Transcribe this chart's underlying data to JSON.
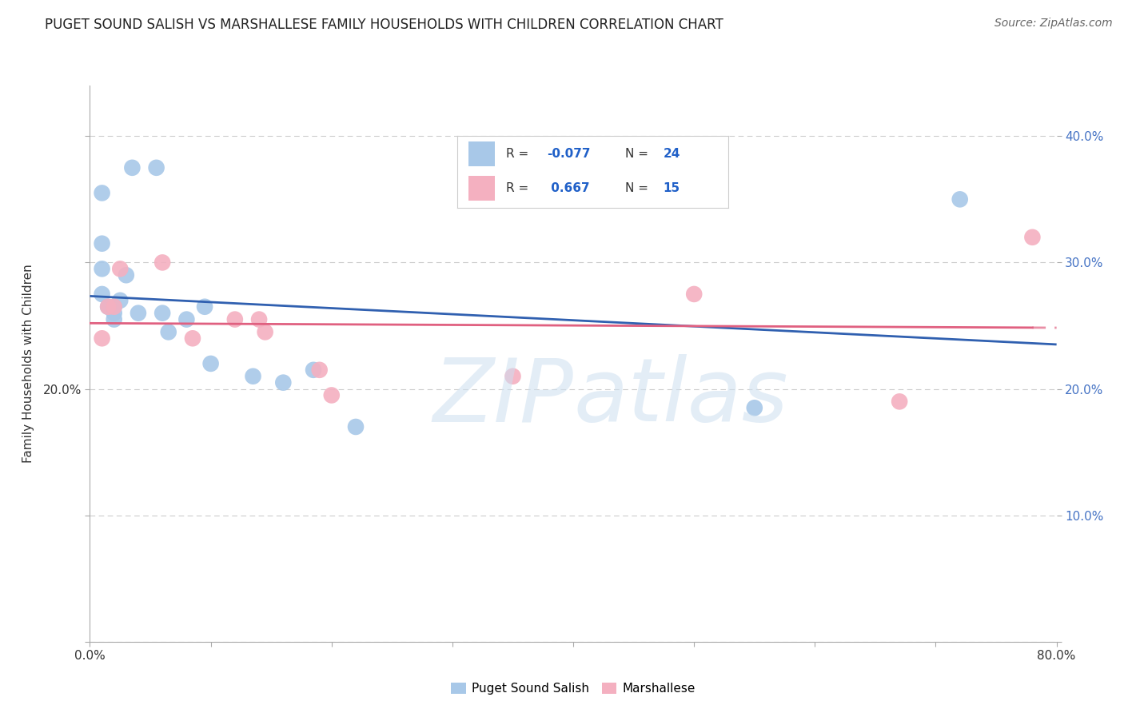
{
  "title": "PUGET SOUND SALISH VS MARSHALLESE FAMILY HOUSEHOLDS WITH CHILDREN CORRELATION CHART",
  "source": "Source: ZipAtlas.com",
  "ylabel": "Family Households with Children",
  "xlim": [
    0.0,
    0.8
  ],
  "ylim": [
    0.0,
    0.44
  ],
  "salish_x": [
    0.035,
    0.055,
    0.01,
    0.01,
    0.01,
    0.01,
    0.015,
    0.02,
    0.02,
    0.02,
    0.025,
    0.03,
    0.04,
    0.06,
    0.065,
    0.08,
    0.095,
    0.1,
    0.135,
    0.16,
    0.185,
    0.22,
    0.55,
    0.72
  ],
  "salish_y": [
    0.375,
    0.375,
    0.355,
    0.315,
    0.295,
    0.275,
    0.265,
    0.265,
    0.26,
    0.255,
    0.27,
    0.29,
    0.26,
    0.26,
    0.245,
    0.255,
    0.265,
    0.22,
    0.21,
    0.205,
    0.215,
    0.17,
    0.185,
    0.35
  ],
  "marshallese_x": [
    0.01,
    0.015,
    0.02,
    0.025,
    0.06,
    0.085,
    0.12,
    0.14,
    0.145,
    0.19,
    0.2,
    0.35,
    0.5,
    0.67,
    0.78
  ],
  "marshallese_y": [
    0.24,
    0.265,
    0.265,
    0.295,
    0.3,
    0.24,
    0.255,
    0.255,
    0.245,
    0.215,
    0.195,
    0.21,
    0.275,
    0.19,
    0.32
  ],
  "salish_color": "#a8c8e8",
  "marshallese_color": "#f4b0c0",
  "salish_line_color": "#3060b0",
  "marshallese_line_color": "#e06080",
  "background_color": "#ffffff",
  "grid_color": "#cccccc",
  "legend_label1": "Puget Sound Salish",
  "legend_label2": "Marshallese",
  "y_tick_positions": [
    0.0,
    0.1,
    0.2,
    0.3,
    0.4
  ],
  "y_tick_labels_right": [
    "",
    "10.0%",
    "20.0%",
    "30.0%",
    "40.0%"
  ],
  "x_tick_positions": [
    0.0,
    0.1,
    0.2,
    0.3,
    0.4,
    0.5,
    0.6,
    0.7,
    0.8
  ],
  "x_tick_labels": [
    "0.0%",
    "",
    "",
    "",
    "",
    "",
    "",
    "",
    "80.0%"
  ]
}
